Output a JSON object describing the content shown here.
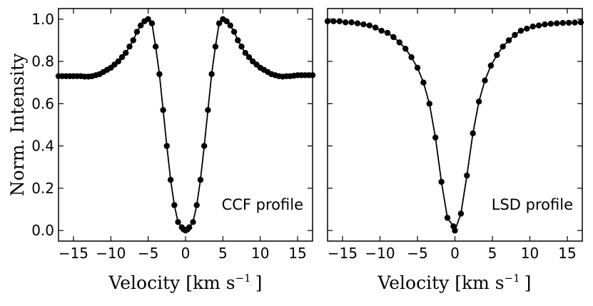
{
  "chart_data": [
    {
      "type": "line",
      "title": "",
      "annotation": "CCF profile",
      "xlabel": "Velocity [km s",
      "xlabel_sup": "−1",
      "xlabel_close": "]",
      "ylabel": "Norm. Intensity",
      "xlim": [
        -17,
        17
      ],
      "ylim": [
        -0.05,
        1.05
      ],
      "xticks": [
        -15,
        -10,
        -5,
        0,
        5,
        10,
        15
      ],
      "xtick_labels": [
        "−15",
        "−10",
        "−5",
        "0",
        "5",
        "10",
        "15"
      ],
      "yticks": [
        0.0,
        0.2,
        0.4,
        0.6,
        0.8,
        1.0
      ],
      "ytick_labels": [
        "0.0",
        "0.2",
        "0.4",
        "0.6",
        "0.8",
        "1.0"
      ],
      "grid": false,
      "marker": "circle",
      "series": [
        {
          "name": "CCF profile",
          "x": [
            -17,
            -16.5,
            -16,
            -15.5,
            -15,
            -14.5,
            -14,
            -13.5,
            -13,
            -12.5,
            -12,
            -11.5,
            -11,
            -10.5,
            -10,
            -9.5,
            -9,
            -8.5,
            -8,
            -7.5,
            -7,
            -6.5,
            -6,
            -5.5,
            -5,
            -4.5,
            -4,
            -3.5,
            -3,
            -2.5,
            -2,
            -1.5,
            -1,
            -0.5,
            -0.25,
            0,
            0.25,
            0.5,
            1,
            1.5,
            2,
            2.5,
            3,
            3.5,
            4,
            4.5,
            5,
            5.5,
            6,
            6.5,
            7,
            7.5,
            8,
            8.5,
            9,
            9.5,
            10,
            10.5,
            11,
            11.5,
            12,
            12.5,
            13,
            13.5,
            14,
            14.5,
            15,
            15.5,
            16,
            16.5,
            17
          ],
          "y": [
            0.73,
            0.73,
            0.73,
            0.73,
            0.73,
            0.73,
            0.73,
            0.728,
            0.728,
            0.73,
            0.735,
            0.74,
            0.75,
            0.76,
            0.77,
            0.785,
            0.8,
            0.82,
            0.84,
            0.87,
            0.9,
            0.94,
            0.97,
            0.99,
            1.0,
            0.98,
            0.87,
            0.74,
            0.57,
            0.4,
            0.24,
            0.12,
            0.04,
            0.015,
            0.005,
            0.0,
            0.005,
            0.015,
            0.04,
            0.12,
            0.24,
            0.4,
            0.57,
            0.74,
            0.87,
            0.98,
            1.0,
            0.99,
            0.97,
            0.94,
            0.9,
            0.87,
            0.84,
            0.82,
            0.8,
            0.785,
            0.77,
            0.76,
            0.75,
            0.74,
            0.735,
            0.73,
            0.728,
            0.73,
            0.73,
            0.732,
            0.735,
            0.735,
            0.735,
            0.735,
            0.735
          ]
        }
      ]
    },
    {
      "type": "line",
      "title": "",
      "annotation": "LSD profile",
      "xlabel": "Velocity [km s",
      "xlabel_sup": "−1",
      "xlabel_close": "]",
      "ylabel": "",
      "xlim": [
        -17,
        17
      ],
      "ylim": [
        -0.05,
        1.05
      ],
      "xticks": [
        -15,
        -10,
        -5,
        0,
        5,
        10,
        15
      ],
      "xtick_labels": [
        "−15",
        "−10",
        "−5",
        "0",
        "5",
        "10",
        "15"
      ],
      "yticks": [
        0.0,
        0.2,
        0.4,
        0.6,
        0.8,
        1.0
      ],
      "ytick_labels": [],
      "grid": false,
      "marker": "circle",
      "series": [
        {
          "name": "LSD profile",
          "x": [
            -17,
            -16.2,
            -15.4,
            -14.6,
            -13.8,
            -13,
            -12.2,
            -11.4,
            -10.6,
            -9.8,
            -9,
            -8.2,
            -7.4,
            -6.6,
            -5.8,
            -5,
            -4.2,
            -3.4,
            -2.6,
            -1.8,
            -1,
            -0.2,
            0,
            0.8,
            1.6,
            2.4,
            3.2,
            4,
            4.8,
            5.6,
            6.4,
            7.2,
            8,
            8.8,
            9.6,
            10.4,
            11.2,
            12,
            12.8,
            13.6,
            14.4,
            15.2,
            16,
            16.8
          ],
          "y": [
            0.99,
            0.99,
            0.99,
            0.985,
            0.985,
            0.98,
            0.975,
            0.97,
            0.96,
            0.945,
            0.935,
            0.915,
            0.89,
            0.86,
            0.82,
            0.77,
            0.7,
            0.6,
            0.44,
            0.23,
            0.06,
            0.02,
            0.0,
            0.08,
            0.26,
            0.46,
            0.61,
            0.71,
            0.78,
            0.83,
            0.87,
            0.9,
            0.925,
            0.945,
            0.955,
            0.965,
            0.97,
            0.975,
            0.978,
            0.98,
            0.982,
            0.983,
            0.984,
            0.985
          ]
        }
      ]
    }
  ]
}
